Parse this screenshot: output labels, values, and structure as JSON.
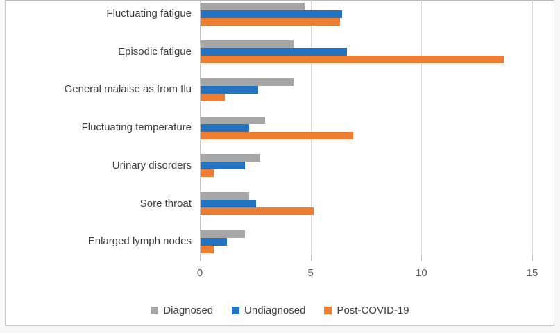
{
  "chart_data": {
    "type": "bar",
    "orientation": "horizontal",
    "title": "",
    "xlabel": "",
    "ylabel": "",
    "categories": [
      "Fluctuating fatigue",
      "Episodic fatigue",
      "General malaise as from flu",
      "Fluctuating temperature",
      "Urinary disorders",
      "Sore throat",
      "Enlarged lymph nodes"
    ],
    "series": [
      {
        "name": "Diagnosed",
        "color": "#a6a6a6",
        "values": [
          4.7,
          4.2,
          4.2,
          2.9,
          2.7,
          2.2,
          2.0
        ]
      },
      {
        "name": "Undiagnosed",
        "color": "#2373c3",
        "values": [
          6.4,
          6.6,
          2.6,
          2.2,
          2.0,
          2.5,
          1.2
        ]
      },
      {
        "name": "Post-COVID-19",
        "color": "#ed7d31",
        "values": [
          6.3,
          13.7,
          1.1,
          6.9,
          0.6,
          5.1,
          0.6
        ]
      }
    ],
    "xlim": [
      0,
      15
    ],
    "xticks": [
      0,
      5,
      10,
      15
    ],
    "grid": "vertical-major",
    "legend_position": "bottom",
    "colors": {
      "gridline": "#d9d9d9",
      "axis": "#c3c3c3",
      "tick_label": "#595959",
      "category_label": "#3d3d3d",
      "legend_label": "#404040"
    }
  }
}
